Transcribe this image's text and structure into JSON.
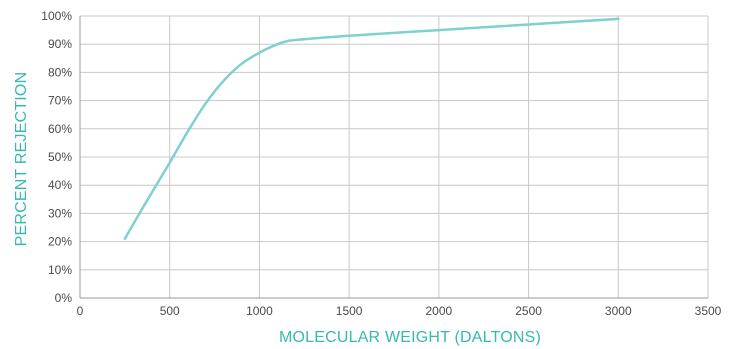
{
  "colors": {
    "accent": "#36b9b0",
    "line": "#7fd0cf",
    "grid": "#c8c8c8",
    "axis": "#9a9a9a",
    "tick_text": "#4a4a4a"
  },
  "chart_data": {
    "type": "line",
    "xlabel": "MOLECULAR WEIGHT (DALTONS)",
    "ylabel": "PERCENT REJECTION",
    "xlim": [
      0,
      3500
    ],
    "ylim": [
      0,
      100
    ],
    "x_ticks": [
      0,
      500,
      1000,
      1500,
      2000,
      2500,
      3000,
      3500
    ],
    "x_tick_labels": [
      "0",
      "500",
      "1000",
      "1500",
      "2000",
      "2500",
      "3000",
      "3500"
    ],
    "y_ticks": [
      0,
      10,
      20,
      30,
      40,
      50,
      60,
      70,
      80,
      90,
      100
    ],
    "y_tick_labels": [
      "0%",
      "10%",
      "20%",
      "30%",
      "40%",
      "50%",
      "60%",
      "70%",
      "80%",
      "90%",
      "100%"
    ],
    "grid": true,
    "series": [
      {
        "x": [
          250,
          350,
          500,
          600,
          700,
          800,
          900,
          1000,
          1100,
          1150,
          1200,
          1500,
          2000,
          2500,
          3000
        ],
        "y": [
          21,
          32,
          48,
          59,
          69,
          77,
          83,
          87,
          90,
          91,
          91.5,
          93,
          95,
          97,
          99
        ]
      }
    ]
  }
}
